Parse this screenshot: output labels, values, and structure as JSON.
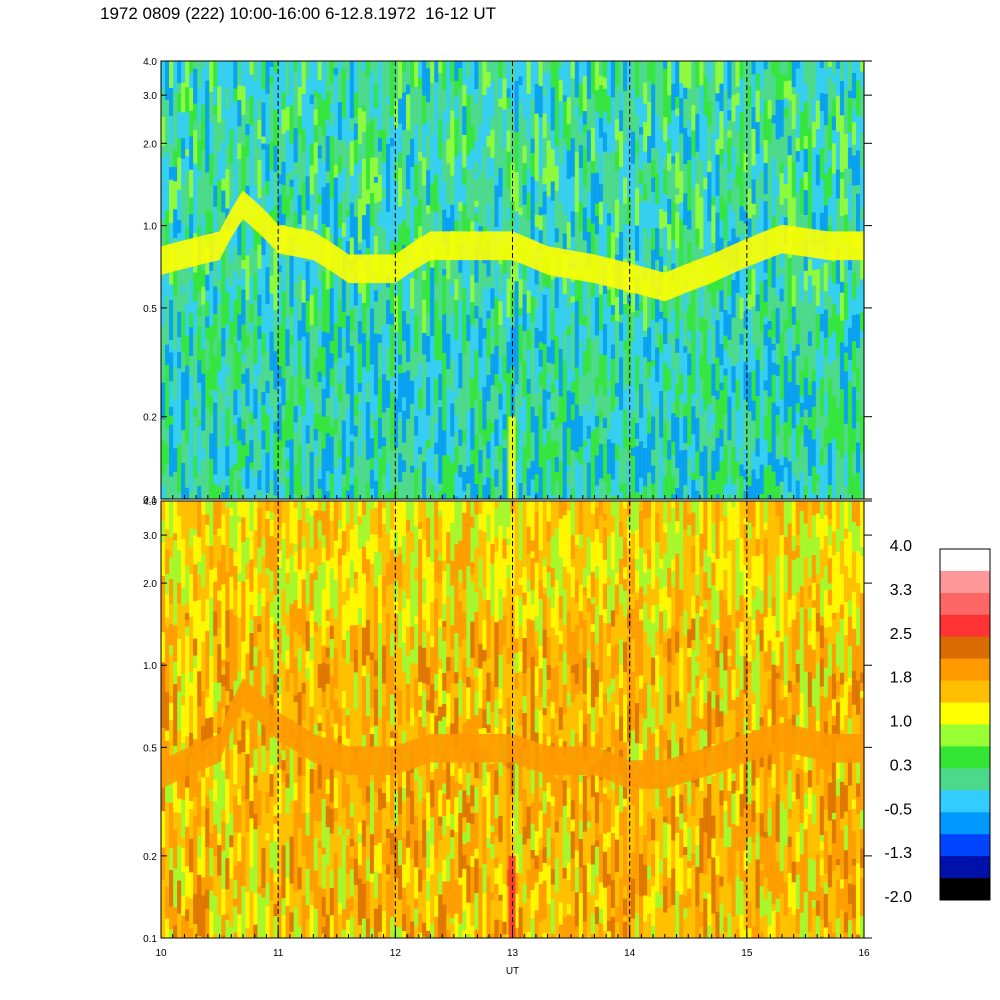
{
  "title": "1972 0809 (222) 10:00-16:00 6-12.8.1972  16-12 UT",
  "chart_data": [
    {
      "type": "heatmap",
      "title": "",
      "xlabel": "",
      "ylabel": "",
      "y_scale": "log",
      "ylim": [
        0.1,
        4.0
      ],
      "xlim": [
        10,
        16
      ],
      "y_ticks": [
        0.1,
        0.2,
        0.5,
        1.0,
        2.0,
        3.0,
        4.0
      ],
      "y_tick_labels": [
        "0.1",
        "0.2",
        "0.5",
        "1.0",
        "2.0",
        "3.0",
        "4.0"
      ],
      "x_ticks": [
        10,
        11,
        12,
        13,
        14,
        15,
        16
      ],
      "x_tick_labels": [],
      "vertical_dashed_lines": [
        11,
        12,
        13,
        14,
        15
      ],
      "band": {
        "description": "bright band ~0.6-1.2 on y axis",
        "x": [
          10.0,
          10.5,
          10.7,
          11.0,
          11.3,
          11.6,
          12.0,
          12.3,
          12.7,
          13.0,
          13.3,
          13.7,
          14.0,
          14.3,
          14.7,
          15.0,
          15.3,
          15.7,
          16.0
        ],
        "y_center": [
          0.75,
          0.85,
          1.2,
          0.9,
          0.85,
          0.7,
          0.7,
          0.85,
          0.85,
          0.85,
          0.75,
          0.7,
          0.65,
          0.6,
          0.7,
          0.8,
          0.9,
          0.85,
          0.85
        ]
      }
    },
    {
      "type": "heatmap",
      "title": "",
      "xlabel": "UT",
      "ylabel": "",
      "y_scale": "log",
      "ylim": [
        0.1,
        4.0
      ],
      "xlim": [
        10,
        16
      ],
      "y_ticks": [
        0.1,
        0.2,
        0.5,
        1.0,
        2.0,
        3.0,
        4.0
      ],
      "y_tick_labels": [
        "0.1",
        "0.2",
        "0.5",
        "1.0",
        "2.0",
        "3.0",
        "4.0"
      ],
      "x_ticks": [
        10,
        11,
        12,
        13,
        14,
        15,
        16
      ],
      "x_tick_labels": [
        "10",
        "11",
        "12",
        "13",
        "14",
        "15",
        "16"
      ],
      "vertical_dashed_lines": [
        11,
        12,
        13,
        14,
        15
      ],
      "band": {
        "x": [
          10.0,
          10.5,
          10.7,
          11.0,
          11.3,
          11.6,
          12.0,
          12.3,
          12.7,
          13.0,
          13.3,
          13.7,
          14.0,
          14.3,
          14.7,
          15.0,
          15.3,
          15.7,
          16.0
        ],
        "y_center": [
          0.4,
          0.5,
          0.8,
          0.6,
          0.5,
          0.45,
          0.45,
          0.5,
          0.5,
          0.5,
          0.45,
          0.45,
          0.4,
          0.4,
          0.45,
          0.5,
          0.55,
          0.5,
          0.5
        ]
      }
    }
  ],
  "colorbar": {
    "labels": [
      "4.0",
      "3.3",
      "2.5",
      "1.8",
      "1.0",
      "0.3",
      "-0.5",
      "-1.3",
      "-2.0"
    ],
    "colors": [
      "#ffffff",
      "#ff9999",
      "#ff6666",
      "#ff3333",
      "#d96c00",
      "#ff9900",
      "#ffbf00",
      "#ffff00",
      "#99ff33",
      "#33e633",
      "#4dd98c",
      "#33ccff",
      "#0099ff",
      "#0044ff",
      "#0011aa",
      "#000000"
    ]
  }
}
